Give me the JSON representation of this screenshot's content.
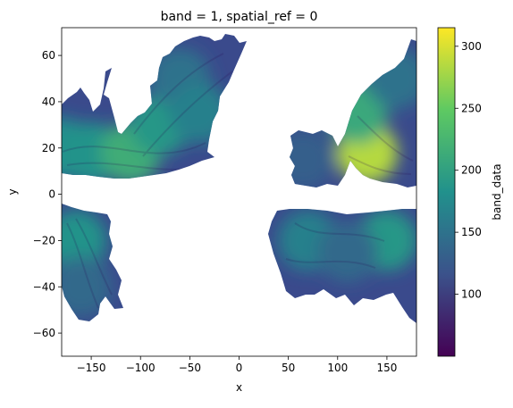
{
  "chart_data": {
    "type": "heatmap",
    "title": "band = 1, spatial_ref = 0",
    "xlabel": "x",
    "ylabel": "y",
    "xlim": [
      -180,
      180
    ],
    "ylim": [
      -70,
      72
    ],
    "x_ticks": [
      -150,
      -100,
      -50,
      0,
      50,
      100,
      150
    ],
    "y_ticks": [
      -60,
      -40,
      -20,
      0,
      20,
      40,
      60
    ],
    "colorbar": {
      "label": "band_data",
      "vmin": 50,
      "vmax": 315,
      "ticks": [
        100,
        150,
        200,
        250,
        300
      ],
      "colormap": "viridis"
    },
    "colormap_stops": [
      "#440154",
      "#3b528b",
      "#21918c",
      "#5ec962",
      "#fde725"
    ],
    "regions": [
      {
        "x": -180,
        "y": 20,
        "value": 180
      },
      {
        "x": -150,
        "y": 18,
        "value": 185
      },
      {
        "x": -110,
        "y": 18,
        "value": 215
      },
      {
        "x": -80,
        "y": 30,
        "value": 190
      },
      {
        "x": -60,
        "y": 50,
        "value": 150
      },
      {
        "x": -40,
        "y": 35,
        "value": 165
      },
      {
        "x": -165,
        "y": -20,
        "value": 185
      },
      {
        "x": -160,
        "y": -40,
        "value": 140
      },
      {
        "x": 65,
        "y": 15,
        "value": 130
      },
      {
        "x": 130,
        "y": 18,
        "value": 285
      },
      {
        "x": 120,
        "y": 35,
        "value": 210
      },
      {
        "x": 160,
        "y": 50,
        "value": 150
      },
      {
        "x": 70,
        "y": -20,
        "value": 165
      },
      {
        "x": 150,
        "y": -20,
        "value": 190
      },
      {
        "x": 110,
        "y": -25,
        "value": 140
      }
    ]
  }
}
